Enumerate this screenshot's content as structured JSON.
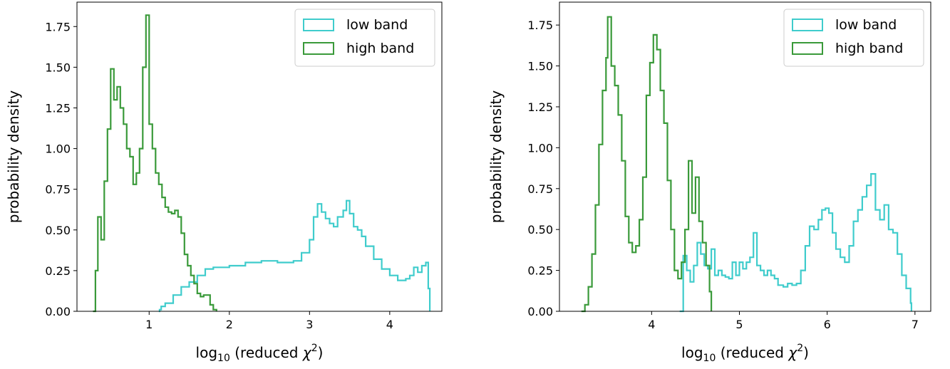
{
  "chart_data": [
    {
      "type": "histogram",
      "xlabel": "log10 (reduced χ2)",
      "xlabel_parts": {
        "log": "log",
        "sub": "10",
        "mid": " (reduced ",
        "chi": "χ",
        "sup": "2",
        "close": ")"
      },
      "ylabel": "probability density",
      "xlim": [
        0.1,
        4.65
      ],
      "ylim": [
        0,
        1.9
      ],
      "xticks": [
        1,
        2,
        3,
        4
      ],
      "xtick_labels": [
        "1",
        "2",
        "3",
        "4"
      ],
      "yticks": [
        0,
        0.25,
        0.5,
        0.75,
        1.0,
        1.25,
        1.5,
        1.75
      ],
      "ytick_labels": [
        "0.00",
        "0.25",
        "0.50",
        "0.75",
        "1.00",
        "1.25",
        "1.50",
        "1.75"
      ],
      "grid": false,
      "legend_position": "top-right",
      "series": [
        {
          "name": "low band",
          "color": "#3fcccc",
          "points": [
            [
              1.12,
              0
            ],
            [
              1.13,
              0.01
            ],
            [
              1.15,
              0.03
            ],
            [
              1.2,
              0.05
            ],
            [
              1.3,
              0.1
            ],
            [
              1.4,
              0.15
            ],
            [
              1.5,
              0.18
            ],
            [
              1.6,
              0.22
            ],
            [
              1.7,
              0.26
            ],
            [
              1.8,
              0.27
            ],
            [
              2.0,
              0.28
            ],
            [
              2.2,
              0.3
            ],
            [
              2.4,
              0.31
            ],
            [
              2.6,
              0.3
            ],
            [
              2.8,
              0.31
            ],
            [
              2.9,
              0.36
            ],
            [
              3.0,
              0.44
            ],
            [
              3.05,
              0.58
            ],
            [
              3.1,
              0.66
            ],
            [
              3.15,
              0.61
            ],
            [
              3.2,
              0.57
            ],
            [
              3.25,
              0.54
            ],
            [
              3.3,
              0.52
            ],
            [
              3.35,
              0.58
            ],
            [
              3.42,
              0.62
            ],
            [
              3.46,
              0.68
            ],
            [
              3.5,
              0.6
            ],
            [
              3.55,
              0.52
            ],
            [
              3.6,
              0.5
            ],
            [
              3.65,
              0.46
            ],
            [
              3.7,
              0.4
            ],
            [
              3.8,
              0.32
            ],
            [
              3.9,
              0.26
            ],
            [
              4.0,
              0.22
            ],
            [
              4.1,
              0.19
            ],
            [
              4.2,
              0.2
            ],
            [
              4.25,
              0.22
            ],
            [
              4.3,
              0.27
            ],
            [
              4.35,
              0.24
            ],
            [
              4.4,
              0.28
            ],
            [
              4.45,
              0.3
            ],
            [
              4.48,
              0.14
            ],
            [
              4.5,
              0
            ]
          ]
        },
        {
          "name": "high band",
          "color": "#3a9a3a",
          "points": [
            [
              0.3,
              0
            ],
            [
              0.33,
              0.25
            ],
            [
              0.36,
              0.58
            ],
            [
              0.4,
              0.44
            ],
            [
              0.44,
              0.8
            ],
            [
              0.48,
              1.12
            ],
            [
              0.52,
              1.49
            ],
            [
              0.56,
              1.3
            ],
            [
              0.6,
              1.38
            ],
            [
              0.64,
              1.25
            ],
            [
              0.68,
              1.15
            ],
            [
              0.72,
              1.0
            ],
            [
              0.76,
              0.95
            ],
            [
              0.8,
              0.78
            ],
            [
              0.84,
              0.85
            ],
            [
              0.88,
              1.0
            ],
            [
              0.92,
              1.5
            ],
            [
              0.96,
              1.82
            ],
            [
              1.0,
              1.15
            ],
            [
              1.04,
              1.0
            ],
            [
              1.08,
              0.85
            ],
            [
              1.12,
              0.78
            ],
            [
              1.16,
              0.7
            ],
            [
              1.2,
              0.64
            ],
            [
              1.24,
              0.61
            ],
            [
              1.28,
              0.6
            ],
            [
              1.32,
              0.62
            ],
            [
              1.36,
              0.58
            ],
            [
              1.4,
              0.48
            ],
            [
              1.44,
              0.35
            ],
            [
              1.48,
              0.28
            ],
            [
              1.52,
              0.22
            ],
            [
              1.56,
              0.17
            ],
            [
              1.6,
              0.11
            ],
            [
              1.64,
              0.09
            ],
            [
              1.68,
              0.1
            ],
            [
              1.72,
              0.1
            ],
            [
              1.76,
              0.04
            ],
            [
              1.8,
              0.01
            ],
            [
              1.84,
              0
            ]
          ]
        }
      ]
    },
    {
      "type": "histogram",
      "xlabel": "log10 (reduced χ2)",
      "xlabel_parts": {
        "log": "log",
        "sub": "10",
        "mid": " (reduced ",
        "chi": "χ",
        "sup": "2",
        "close": ")"
      },
      "ylabel": "probability density",
      "xlim": [
        2.95,
        7.18
      ],
      "ylim": [
        0,
        1.89
      ],
      "xticks": [
        4,
        5,
        6,
        7
      ],
      "xtick_labels": [
        "4",
        "5",
        "6",
        "7"
      ],
      "yticks": [
        0,
        0.25,
        0.5,
        0.75,
        1.0,
        1.25,
        1.5,
        1.75
      ],
      "ytick_labels": [
        "0.00",
        "0.25",
        "0.50",
        "0.75",
        "1.00",
        "1.25",
        "1.50",
        "1.75"
      ],
      "grid": false,
      "legend_position": "top-right",
      "series": [
        {
          "name": "low band",
          "color": "#3fcccc",
          "points": [
            [
              4.32,
              0
            ],
            [
              4.36,
              0.34
            ],
            [
              4.4,
              0.25
            ],
            [
              4.44,
              0.18
            ],
            [
              4.48,
              0.28
            ],
            [
              4.52,
              0.42
            ],
            [
              4.56,
              0.35
            ],
            [
              4.6,
              0.28
            ],
            [
              4.64,
              0.26
            ],
            [
              4.68,
              0.38
            ],
            [
              4.72,
              0.22
            ],
            [
              4.76,
              0.25
            ],
            [
              4.8,
              0.22
            ],
            [
              4.84,
              0.21
            ],
            [
              4.88,
              0.2
            ],
            [
              4.92,
              0.3
            ],
            [
              4.96,
              0.22
            ],
            [
              5.0,
              0.3
            ],
            [
              5.04,
              0.26
            ],
            [
              5.08,
              0.3
            ],
            [
              5.12,
              0.33
            ],
            [
              5.16,
              0.48
            ],
            [
              5.2,
              0.28
            ],
            [
              5.24,
              0.25
            ],
            [
              5.28,
              0.22
            ],
            [
              5.32,
              0.25
            ],
            [
              5.36,
              0.22
            ],
            [
              5.4,
              0.2
            ],
            [
              5.44,
              0.16
            ],
            [
              5.5,
              0.15
            ],
            [
              5.55,
              0.17
            ],
            [
              5.6,
              0.16
            ],
            [
              5.65,
              0.17
            ],
            [
              5.7,
              0.25
            ],
            [
              5.75,
              0.4
            ],
            [
              5.8,
              0.52
            ],
            [
              5.85,
              0.5
            ],
            [
              5.9,
              0.56
            ],
            [
              5.94,
              0.62
            ],
            [
              5.98,
              0.63
            ],
            [
              6.02,
              0.6
            ],
            [
              6.06,
              0.48
            ],
            [
              6.1,
              0.38
            ],
            [
              6.15,
              0.33
            ],
            [
              6.2,
              0.3
            ],
            [
              6.25,
              0.4
            ],
            [
              6.3,
              0.55
            ],
            [
              6.35,
              0.62
            ],
            [
              6.4,
              0.7
            ],
            [
              6.45,
              0.77
            ],
            [
              6.5,
              0.84
            ],
            [
              6.55,
              0.62
            ],
            [
              6.6,
              0.56
            ],
            [
              6.65,
              0.65
            ],
            [
              6.7,
              0.5
            ],
            [
              6.75,
              0.48
            ],
            [
              6.8,
              0.35
            ],
            [
              6.85,
              0.22
            ],
            [
              6.9,
              0.14
            ],
            [
              6.95,
              0.05
            ],
            [
              6.96,
              0
            ]
          ]
        },
        {
          "name": "high band",
          "color": "#3a9a3a",
          "points": [
            [
              3.2,
              0
            ],
            [
              3.24,
              0.04
            ],
            [
              3.28,
              0.15
            ],
            [
              3.32,
              0.35
            ],
            [
              3.36,
              0.65
            ],
            [
              3.4,
              1.02
            ],
            [
              3.44,
              1.35
            ],
            [
              3.48,
              1.55
            ],
            [
              3.5,
              1.8
            ],
            [
              3.54,
              1.5
            ],
            [
              3.58,
              1.38
            ],
            [
              3.62,
              1.2
            ],
            [
              3.66,
              0.92
            ],
            [
              3.7,
              0.58
            ],
            [
              3.74,
              0.42
            ],
            [
              3.78,
              0.36
            ],
            [
              3.82,
              0.4
            ],
            [
              3.86,
              0.56
            ],
            [
              3.9,
              0.82
            ],
            [
              3.94,
              1.32
            ],
            [
              3.98,
              1.52
            ],
            [
              4.02,
              1.69
            ],
            [
              4.06,
              1.6
            ],
            [
              4.1,
              1.35
            ],
            [
              4.14,
              1.15
            ],
            [
              4.18,
              0.8
            ],
            [
              4.22,
              0.5
            ],
            [
              4.26,
              0.25
            ],
            [
              4.3,
              0.2
            ],
            [
              4.34,
              0.3
            ],
            [
              4.38,
              0.5
            ],
            [
              4.42,
              0.92
            ],
            [
              4.46,
              0.6
            ],
            [
              4.5,
              0.82
            ],
            [
              4.54,
              0.55
            ],
            [
              4.58,
              0.42
            ],
            [
              4.62,
              0.28
            ],
            [
              4.66,
              0.12
            ],
            [
              4.68,
              0
            ]
          ]
        }
      ]
    }
  ]
}
